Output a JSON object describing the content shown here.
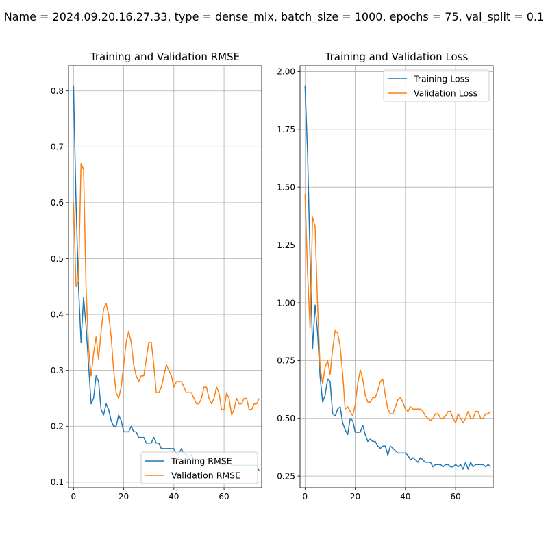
{
  "figure": {
    "suptitle": "Name = 2024.09.20.16.27.33, type = dense_mix, batch_size = 1000, epochs = 75, val_split = 0.1"
  },
  "colors": {
    "training": "#1f77b4",
    "validation": "#ff7f0e",
    "grid": "#b0b0b0"
  },
  "chart_data": [
    {
      "type": "line",
      "title": "Training and Validation RMSE",
      "xlabel": "",
      "ylabel": "",
      "xlim": [
        -2,
        75
      ],
      "ylim": [
        0.09,
        0.845
      ],
      "xticks": [
        0,
        20,
        40,
        60
      ],
      "yticks": [
        0.1,
        0.2,
        0.3,
        0.4,
        0.5,
        0.6,
        0.7,
        0.8
      ],
      "ytick_labels": [
        "0.1",
        "0.2",
        "0.3",
        "0.4",
        "0.5",
        "0.6",
        "0.7",
        "0.8"
      ],
      "grid": true,
      "legend_position": "lower-right",
      "series": [
        {
          "name": "Training RMSE",
          "color": "#1f77b4",
          "x": [
            0,
            1,
            2,
            3,
            4,
            5,
            6,
            7,
            8,
            9,
            10,
            11,
            12,
            13,
            14,
            15,
            16,
            17,
            18,
            19,
            20,
            21,
            22,
            23,
            24,
            25,
            26,
            27,
            28,
            29,
            30,
            31,
            32,
            33,
            34,
            35,
            36,
            37,
            38,
            39,
            40,
            41,
            42,
            43,
            44,
            45,
            46,
            47,
            48,
            49,
            50,
            51,
            52,
            53,
            54,
            55,
            56,
            57,
            58,
            59,
            60,
            61,
            62,
            63,
            64,
            65,
            66,
            67,
            68,
            69,
            70,
            71,
            72,
            73,
            74
          ],
          "values": [
            0.81,
            0.6,
            0.45,
            0.35,
            0.43,
            0.38,
            0.31,
            0.24,
            0.25,
            0.29,
            0.28,
            0.23,
            0.22,
            0.24,
            0.23,
            0.21,
            0.2,
            0.2,
            0.22,
            0.21,
            0.19,
            0.19,
            0.19,
            0.2,
            0.19,
            0.19,
            0.18,
            0.18,
            0.18,
            0.17,
            0.17,
            0.17,
            0.18,
            0.17,
            0.17,
            0.16,
            0.16,
            0.16,
            0.16,
            0.16,
            0.16,
            0.15,
            0.15,
            0.16,
            0.15,
            0.15,
            0.14,
            0.15,
            0.14,
            0.14,
            0.14,
            0.14,
            0.14,
            0.14,
            0.14,
            0.14,
            0.14,
            0.13,
            0.14,
            0.13,
            0.13,
            0.13,
            0.14,
            0.13,
            0.13,
            0.13,
            0.13,
            0.13,
            0.13,
            0.13,
            0.13,
            0.13,
            0.13,
            0.13,
            0.12
          ]
        },
        {
          "name": "Validation RMSE",
          "color": "#ff7f0e",
          "x": [
            0,
            1,
            2,
            3,
            4,
            5,
            6,
            7,
            8,
            9,
            10,
            11,
            12,
            13,
            14,
            15,
            16,
            17,
            18,
            19,
            20,
            21,
            22,
            23,
            24,
            25,
            26,
            27,
            28,
            29,
            30,
            31,
            32,
            33,
            34,
            35,
            36,
            37,
            38,
            39,
            40,
            41,
            42,
            43,
            44,
            45,
            46,
            47,
            48,
            49,
            50,
            51,
            52,
            53,
            54,
            55,
            56,
            57,
            58,
            59,
            60,
            61,
            62,
            63,
            64,
            65,
            66,
            67,
            68,
            69,
            70,
            71,
            72,
            73,
            74
          ],
          "values": [
            0.6,
            0.45,
            0.46,
            0.67,
            0.66,
            0.45,
            0.34,
            0.29,
            0.33,
            0.36,
            0.32,
            0.37,
            0.41,
            0.42,
            0.4,
            0.36,
            0.3,
            0.26,
            0.25,
            0.27,
            0.31,
            0.35,
            0.37,
            0.35,
            0.31,
            0.29,
            0.28,
            0.29,
            0.29,
            0.32,
            0.35,
            0.35,
            0.31,
            0.26,
            0.26,
            0.27,
            0.29,
            0.31,
            0.3,
            0.29,
            0.27,
            0.28,
            0.28,
            0.28,
            0.27,
            0.26,
            0.26,
            0.26,
            0.25,
            0.24,
            0.24,
            0.25,
            0.27,
            0.27,
            0.25,
            0.24,
            0.25,
            0.27,
            0.26,
            0.23,
            0.23,
            0.26,
            0.25,
            0.22,
            0.23,
            0.25,
            0.24,
            0.24,
            0.25,
            0.25,
            0.23,
            0.23,
            0.24,
            0.24,
            0.25
          ]
        }
      ]
    },
    {
      "type": "line",
      "title": "Training and Validation Loss",
      "xlabel": "",
      "ylabel": "",
      "xlim": [
        -2,
        75
      ],
      "ylim": [
        0.2,
        2.025
      ],
      "xticks": [
        0,
        20,
        40,
        60
      ],
      "yticks": [
        0.25,
        0.5,
        0.75,
        1.0,
        1.25,
        1.5,
        1.75,
        2.0
      ],
      "ytick_labels": [
        "0.25",
        "0.50",
        "0.75",
        "1.00",
        "1.25",
        "1.50",
        "1.75",
        "2.00"
      ],
      "grid": true,
      "legend_position": "upper-right",
      "series": [
        {
          "name": "Training Loss",
          "color": "#1f77b4",
          "x": [
            0,
            1,
            2,
            3,
            4,
            5,
            6,
            7,
            8,
            9,
            10,
            11,
            12,
            13,
            14,
            15,
            16,
            17,
            18,
            19,
            20,
            21,
            22,
            23,
            24,
            25,
            26,
            27,
            28,
            29,
            30,
            31,
            32,
            33,
            34,
            35,
            36,
            37,
            38,
            39,
            40,
            41,
            42,
            43,
            44,
            45,
            46,
            47,
            48,
            49,
            50,
            51,
            52,
            53,
            54,
            55,
            56,
            57,
            58,
            59,
            60,
            61,
            62,
            63,
            64,
            65,
            66,
            67,
            68,
            69,
            70,
            71,
            72,
            73,
            74
          ],
          "values": [
            1.94,
            1.65,
            1.2,
            0.8,
            0.99,
            0.87,
            0.68,
            0.57,
            0.6,
            0.67,
            0.66,
            0.52,
            0.51,
            0.54,
            0.55,
            0.48,
            0.45,
            0.43,
            0.5,
            0.49,
            0.44,
            0.44,
            0.44,
            0.47,
            0.43,
            0.4,
            0.41,
            0.4,
            0.4,
            0.38,
            0.37,
            0.38,
            0.38,
            0.34,
            0.38,
            0.37,
            0.36,
            0.35,
            0.35,
            0.35,
            0.35,
            0.34,
            0.32,
            0.33,
            0.32,
            0.31,
            0.33,
            0.32,
            0.31,
            0.31,
            0.31,
            0.29,
            0.3,
            0.3,
            0.3,
            0.29,
            0.3,
            0.3,
            0.29,
            0.29,
            0.3,
            0.29,
            0.3,
            0.28,
            0.31,
            0.28,
            0.31,
            0.29,
            0.3,
            0.3,
            0.3,
            0.3,
            0.29,
            0.3,
            0.29
          ]
        },
        {
          "name": "Validation Loss",
          "color": "#ff7f0e",
          "x": [
            0,
            1,
            2,
            3,
            4,
            5,
            6,
            7,
            8,
            9,
            10,
            11,
            12,
            13,
            14,
            15,
            16,
            17,
            18,
            19,
            20,
            21,
            22,
            23,
            24,
            25,
            26,
            27,
            28,
            29,
            30,
            31,
            32,
            33,
            34,
            35,
            36,
            37,
            38,
            39,
            40,
            41,
            42,
            43,
            44,
            45,
            46,
            47,
            48,
            49,
            50,
            51,
            52,
            53,
            54,
            55,
            56,
            57,
            58,
            59,
            60,
            61,
            62,
            63,
            64,
            65,
            66,
            67,
            68,
            69,
            70,
            71,
            72,
            73,
            74
          ],
          "values": [
            1.47,
            1.13,
            0.89,
            1.37,
            1.33,
            0.99,
            0.72,
            0.65,
            0.72,
            0.75,
            0.69,
            0.8,
            0.88,
            0.87,
            0.81,
            0.69,
            0.54,
            0.55,
            0.53,
            0.51,
            0.56,
            0.65,
            0.71,
            0.67,
            0.6,
            0.57,
            0.57,
            0.59,
            0.59,
            0.62,
            0.66,
            0.67,
            0.6,
            0.54,
            0.52,
            0.52,
            0.55,
            0.58,
            0.59,
            0.57,
            0.54,
            0.53,
            0.55,
            0.54,
            0.54,
            0.54,
            0.54,
            0.53,
            0.51,
            0.5,
            0.49,
            0.5,
            0.52,
            0.52,
            0.5,
            0.5,
            0.51,
            0.53,
            0.53,
            0.5,
            0.48,
            0.52,
            0.5,
            0.48,
            0.5,
            0.53,
            0.5,
            0.5,
            0.53,
            0.53,
            0.5,
            0.5,
            0.52,
            0.52,
            0.53
          ]
        }
      ]
    }
  ]
}
